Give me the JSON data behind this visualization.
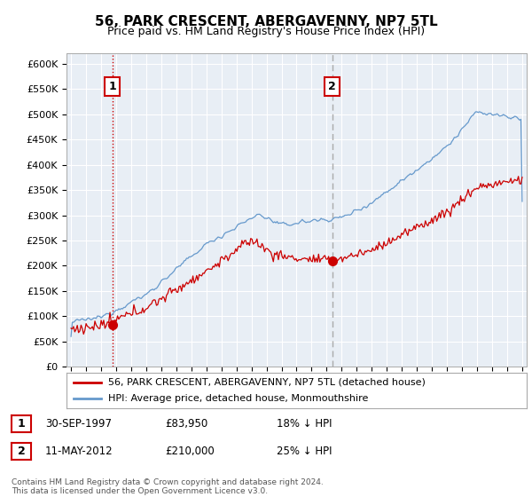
{
  "title": "56, PARK CRESCENT, ABERGAVENNY, NP7 5TL",
  "subtitle": "Price paid vs. HM Land Registry's House Price Index (HPI)",
  "ylabel_ticks": [
    "£0",
    "£50K",
    "£100K",
    "£150K",
    "£200K",
    "£250K",
    "£300K",
    "£350K",
    "£400K",
    "£450K",
    "£500K",
    "£550K",
    "£600K"
  ],
  "ylim": [
    0,
    620000
  ],
  "xlim_start": 1994.7,
  "xlim_end": 2025.3,
  "point1_x": 1997.75,
  "point1_y": 83950,
  "point1_label": "1",
  "point2_x": 2012.36,
  "point2_y": 210000,
  "point2_label": "2",
  "legend_line1": "56, PARK CRESCENT, ABERGAVENNY, NP7 5TL (detached house)",
  "legend_line2": "HPI: Average price, detached house, Monmouthshire",
  "ann1_num": "1",
  "ann1_date": "30-SEP-1997",
  "ann1_price": "£83,950",
  "ann1_hpi": "18% ↓ HPI",
  "ann2_num": "2",
  "ann2_date": "11-MAY-2012",
  "ann2_price": "£210,000",
  "ann2_hpi": "25% ↓ HPI",
  "footnote": "Contains HM Land Registry data © Crown copyright and database right 2024.\nThis data is licensed under the Open Government Licence v3.0.",
  "line_color_red": "#cc0000",
  "line_color_blue": "#6699cc",
  "bg_color": "#ffffff",
  "chart_bg": "#e8eef5",
  "grid_color": "#ffffff",
  "annotation_box_color": "#cc0000",
  "vline2_color": "#aaaaaa"
}
